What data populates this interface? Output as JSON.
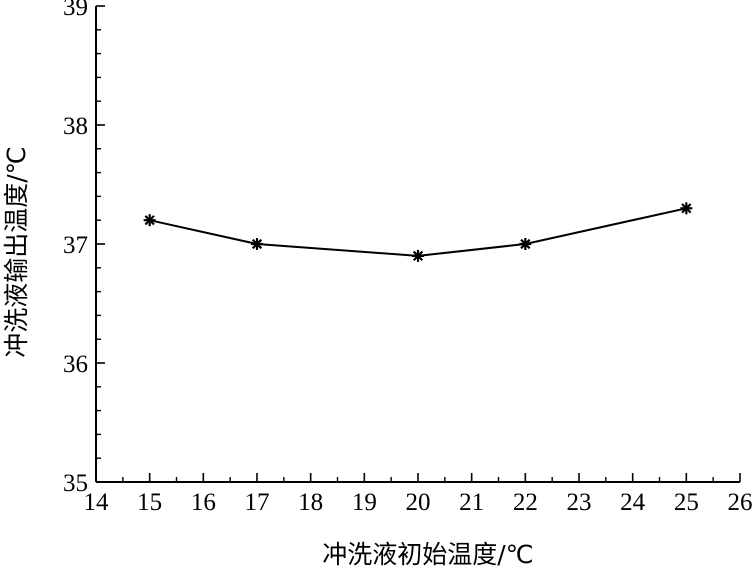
{
  "chart_data": {
    "type": "line",
    "title": "",
    "xlabel": "冲洗液初始温度/℃",
    "ylabel": "冲洗液输出温度/℃",
    "xlim": [
      14,
      26
    ],
    "ylim": [
      35,
      39
    ],
    "x_ticks": [
      "14",
      "15",
      "16",
      "17",
      "18",
      "19",
      "20",
      "21",
      "22",
      "23",
      "24",
      "25",
      "26"
    ],
    "y_ticks": [
      "35",
      "36",
      "37",
      "38",
      "39"
    ],
    "grid": false,
    "legend": "none",
    "marker": "asterisk",
    "line_color": "#000000",
    "series": [
      {
        "x": [
          15,
          17,
          20,
          22,
          25
        ],
        "values": [
          37.2,
          37.0,
          36.9,
          37.0,
          37.3
        ]
      }
    ]
  }
}
